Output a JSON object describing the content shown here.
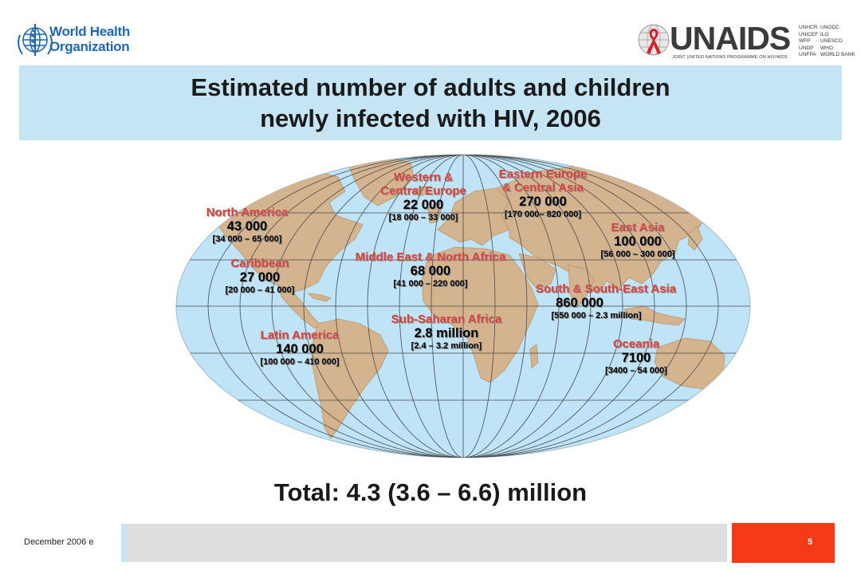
{
  "header": {
    "who_logo": {
      "line1": "World Health",
      "line2": "Organization"
    },
    "unaids_logo": {
      "wordmark": "UNAIDS",
      "subtitle": "JOINT UNITED NATIONS PROGRAMME ON HIV/AIDS",
      "sponsors_col1": [
        "UNHCR",
        "UNICEF",
        "WFP",
        "UNDP",
        "UNFPA"
      ],
      "sponsors_col2": [
        "UNODC",
        "ILO",
        "UNESCO",
        "WHO",
        "WORLD BANK"
      ]
    }
  },
  "title": {
    "line1": "Estimated number of adults and children",
    "line2": "newly infected with HIV, 2006"
  },
  "regions": [
    {
      "name": "North America",
      "value": "43 000",
      "range": "[34 000 – 65 000]"
    },
    {
      "name": "Caribbean",
      "value": "27 000",
      "range": "[20 000 – 41 000]"
    },
    {
      "name": "Latin America",
      "value": "140 000",
      "range": "[100 000 – 410 000]"
    },
    {
      "name_line1": "Western &",
      "name_line2": "Central Europe",
      "value": "22 000",
      "range": "[18 000 – 33 000]"
    },
    {
      "name": "Middle East & North Africa",
      "value": "68 000",
      "range": "[41 000 – 220 000]"
    },
    {
      "name": "Sub-Saharan Africa",
      "value": "2.8 million",
      "range": "[2.4 – 3.2 million]"
    },
    {
      "name_line1": "Eastern Europe",
      "name_line2": "& Central Asia",
      "value": "270 000",
      "range": "[170 000– 820 000]"
    },
    {
      "name": "East Asia",
      "value": "100 000",
      "range": "[56 000 – 300 000]"
    },
    {
      "name": "South & South-East Asia",
      "value": "860 000",
      "range": "[550 000 – 2.3 million]"
    },
    {
      "name": "Oceania",
      "value": "7100",
      "range": "[3400 – 54 000]"
    }
  ],
  "total": "Total: 4.3 (3.6 – 6.6) million",
  "footer": {
    "date": "December 2006 e",
    "page_number": "5"
  },
  "colors": {
    "title_band": "#c5e5f5",
    "ocean": "#bfe3f7",
    "land": "#d4b48f",
    "region_name": "#d9433b",
    "footer_accent": "#f43a17",
    "footer_bar": "#dedede"
  }
}
